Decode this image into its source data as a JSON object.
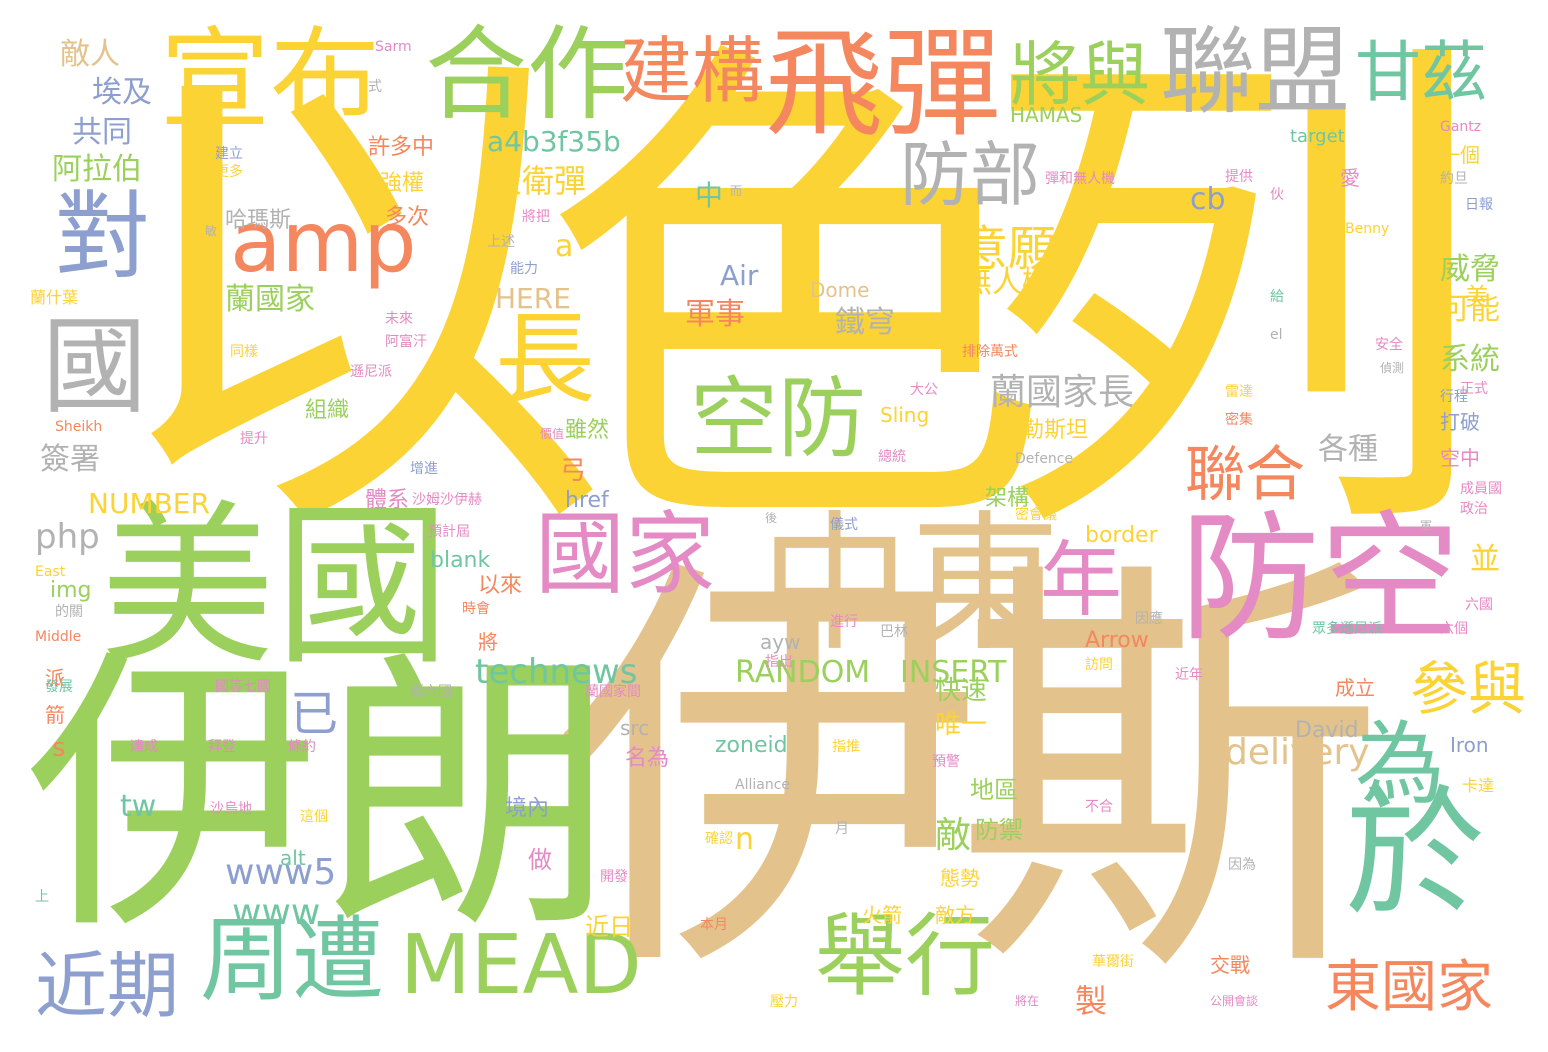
{
  "palette": {
    "yellow": "#fcd334",
    "green": "#9bd05c",
    "tan": "#e3c38b",
    "orange": "#f5875f",
    "teal": "#6fc6a1",
    "pink": "#e48ac4",
    "blue": "#8c9fcf",
    "gray": "#b2b2b2"
  },
  "words": [
    {
      "text": "以色列",
      "color": "yellow"
    },
    {
      "text": "伊斯",
      "color": "tan"
    },
    {
      "text": "伊朗",
      "color": "green"
    },
    {
      "text": "美國",
      "color": "green"
    },
    {
      "text": "中東",
      "color": "tan"
    },
    {
      "text": "防空",
      "color": "pink"
    },
    {
      "text": "飛彈",
      "color": "orange"
    },
    {
      "text": "宣布",
      "color": "yellow"
    },
    {
      "text": "合作",
      "color": "green"
    },
    {
      "text": "聯盟",
      "color": "gray"
    },
    {
      "text": "國家",
      "color": "pink"
    },
    {
      "text": "於",
      "color": "teal"
    },
    {
      "text": "周遭",
      "color": "teal"
    },
    {
      "text": "MEAD",
      "color": "green"
    },
    {
      "text": "舉行",
      "color": "green"
    },
    {
      "text": "國",
      "color": "gray"
    },
    {
      "text": "長",
      "color": "yellow"
    },
    {
      "text": "amp",
      "color": "orange"
    },
    {
      "text": "空防",
      "color": "green"
    },
    {
      "text": "對",
      "color": "blue"
    },
    {
      "text": "建構",
      "color": "orange"
    },
    {
      "text": "將與",
      "color": "green"
    },
    {
      "text": "甘茲",
      "color": "teal"
    },
    {
      "text": "為",
      "color": "teal"
    },
    {
      "text": "年",
      "color": "pink"
    },
    {
      "text": "近期",
      "color": "blue"
    },
    {
      "text": "防部",
      "color": "gray"
    },
    {
      "text": "聯合",
      "color": "orange"
    },
    {
      "text": "參與",
      "color": "yellow"
    },
    {
      "text": "東國家",
      "color": "orange"
    },
    {
      "text": "意願",
      "color": "yellow"
    },
    {
      "text": "蘭國家長",
      "color": "gray"
    },
    {
      "text": "technews",
      "color": "teal"
    },
    {
      "text": "delivery",
      "color": "tan"
    },
    {
      "text": "www5",
      "color": "blue"
    },
    {
      "text": "a4b3f35b",
      "color": "teal"
    },
    {
      "text": "大衛彈",
      "color": "yellow"
    },
    {
      "text": "RANDOM",
      "color": "green"
    },
    {
      "text": "INSERT",
      "color": "green"
    },
    {
      "text": "NUMBER",
      "color": "yellow"
    },
    {
      "text": "HERE",
      "color": "tan"
    },
    {
      "text": "www",
      "color": "teal"
    },
    {
      "text": "敵人",
      "color": "tan"
    },
    {
      "text": "埃及",
      "color": "blue"
    },
    {
      "text": "共同",
      "color": "blue"
    },
    {
      "text": "阿拉伯",
      "color": "green"
    },
    {
      "text": "蘭國家",
      "color": "green"
    },
    {
      "text": "無人機",
      "color": "yellow"
    },
    {
      "text": "軍事",
      "color": "orange"
    },
    {
      "text": "鐵穹",
      "color": "gray"
    },
    {
      "text": "威脅",
      "color": "green"
    },
    {
      "text": "可能",
      "color": "yellow"
    },
    {
      "text": "系統",
      "color": "green"
    },
    {
      "text": "各種",
      "color": "gray"
    },
    {
      "text": "巴勒斯坦",
      "color": "yellow"
    },
    {
      "text": "簽署",
      "color": "gray"
    },
    {
      "text": "php",
      "color": "gray"
    },
    {
      "text": "cb",
      "color": "blue"
    },
    {
      "text": "a",
      "color": "yellow"
    },
    {
      "text": "Air",
      "color": "blue"
    },
    {
      "text": "已",
      "color": "blue"
    },
    {
      "text": "快速",
      "color": "green"
    },
    {
      "text": "唯一",
      "color": "yellow"
    },
    {
      "text": "地區",
      "color": "green"
    },
    {
      "text": "防禦",
      "color": "green"
    },
    {
      "text": "敵",
      "color": "green"
    },
    {
      "text": "tw",
      "color": "teal"
    },
    {
      "text": "n",
      "color": "yellow"
    },
    {
      "text": "製",
      "color": "orange"
    },
    {
      "text": "並",
      "color": "yellow"
    },
    {
      "text": "美",
      "color": "yellow"
    },
    {
      "text": "中",
      "color": "teal"
    },
    {
      "text": "弓",
      "color": "orange"
    },
    {
      "text": "雖然",
      "color": "green"
    },
    {
      "text": "許多中",
      "color": "orange"
    },
    {
      "text": "強權",
      "color": "yellow"
    },
    {
      "text": "多次",
      "color": "orange"
    },
    {
      "text": "哈瑪斯",
      "color": "gray"
    },
    {
      "text": "組織",
      "color": "green"
    },
    {
      "text": "體系",
      "color": "pink"
    },
    {
      "text": "架構",
      "color": "green"
    },
    {
      "text": "以來",
      "color": "orange"
    },
    {
      "text": "blank",
      "color": "teal"
    },
    {
      "text": "img",
      "color": "green"
    },
    {
      "text": "href",
      "color": "blue"
    },
    {
      "text": "border",
      "color": "yellow"
    },
    {
      "text": "Arrow",
      "color": "orange"
    },
    {
      "text": "zoneid",
      "color": "teal"
    },
    {
      "text": "David",
      "color": "gray"
    },
    {
      "text": "Iron",
      "color": "blue"
    },
    {
      "text": "Sling",
      "color": "yellow"
    },
    {
      "text": "Dome",
      "color": "tan"
    },
    {
      "text": "target",
      "color": "teal"
    },
    {
      "text": "HAMAS",
      "color": "green"
    },
    {
      "text": "alt",
      "color": "teal"
    },
    {
      "text": "src",
      "color": "gray"
    },
    {
      "text": "ayw",
      "color": "gray"
    },
    {
      "text": "s",
      "color": "orange"
    },
    {
      "text": "ck",
      "color": "yellow"
    },
    {
      "text": "名為",
      "color": "pink"
    },
    {
      "text": "境內",
      "color": "blue"
    },
    {
      "text": "做",
      "color": "pink"
    },
    {
      "text": "近日",
      "color": "yellow"
    },
    {
      "text": "態勢",
      "color": "yellow"
    },
    {
      "text": "敵方",
      "color": "yellow"
    },
    {
      "text": "火箭",
      "color": "yellow"
    },
    {
      "text": "交戰",
      "color": "orange"
    },
    {
      "text": "成立",
      "color": "orange"
    },
    {
      "text": "派",
      "color": "orange"
    },
    {
      "text": "箭",
      "color": "orange"
    },
    {
      "text": "將",
      "color": "orange"
    },
    {
      "text": "一個",
      "color": "yellow"
    },
    {
      "text": "打破",
      "color": "blue"
    },
    {
      "text": "空中",
      "color": "pink"
    },
    {
      "text": "愛",
      "color": "pink"
    },
    {
      "text": "戰機",
      "color": "pink"
    },
    {
      "text": "蘭什葉",
      "color": "pink"
    },
    {
      "text": "彈和無人機",
      "color": "yellow"
    },
    {
      "text": "提供",
      "color": "pink"
    },
    {
      "text": "建立",
      "color": "pink"
    },
    {
      "text": "更多",
      "color": "blue"
    },
    {
      "text": "上述",
      "color": "yellow"
    },
    {
      "text": "能力",
      "color": "gray"
    },
    {
      "text": "將把",
      "color": "blue"
    },
    {
      "text": "Gantz",
      "color": "pink"
    },
    {
      "text": "Middle",
      "color": "pink"
    },
    {
      "text": "East",
      "color": "orange"
    },
    {
      "text": "Sheikh",
      "color": "yellow"
    },
    {
      "text": "Defence",
      "color": "orange"
    },
    {
      "text": "Alliance",
      "color": "gray"
    },
    {
      "text": "Benny",
      "color": "gray"
    },
    {
      "text": "Sarm",
      "color": "yellow"
    },
    {
      "text": "式",
      "color": "pink"
    },
    {
      "text": "約旦",
      "color": "gray"
    },
    {
      "text": "日報",
      "color": "gray"
    },
    {
      "text": "安全",
      "color": "blue"
    },
    {
      "text": "偵測",
      "color": "pink"
    },
    {
      "text": "正式",
      "color": "gray"
    },
    {
      "text": "行程",
      "color": "pink"
    },
    {
      "text": "el",
      "color": "blue"
    },
    {
      "text": "雷達",
      "color": "gray"
    },
    {
      "text": "密集",
      "color": "yellow"
    },
    {
      "text": "成員國",
      "color": "orange"
    },
    {
      "text": "政治",
      "color": "pink"
    },
    {
      "text": "時會",
      "color": "pink"
    },
    {
      "text": "六國",
      "color": "orange"
    },
    {
      "text": "六個",
      "color": "pink"
    },
    {
      "text": "眾多遜尼派",
      "color": "pink"
    },
    {
      "text": "因應",
      "color": "teal"
    },
    {
      "text": "近年",
      "color": "gray"
    },
    {
      "text": "訪問",
      "color": "pink"
    },
    {
      "text": "指出",
      "color": "yellow"
    },
    {
      "text": "進行",
      "color": "pink"
    },
    {
      "text": "巴林",
      "color": "pink"
    },
    {
      "text": "後",
      "color": "gray"
    },
    {
      "text": "儀式",
      "color": "gray"
    },
    {
      "text": "密會議",
      "color": "blue"
    },
    {
      "text": "預計屆",
      "color": "yellow"
    },
    {
      "text": "沙姆沙伊赫",
      "color": "pink"
    },
    {
      "text": "增進",
      "color": "pink"
    },
    {
      "text": "總統",
      "color": "blue"
    },
    {
      "text": "大公",
      "color": "pink"
    },
    {
      "text": "排除萬式",
      "color": "pink"
    },
    {
      "text": "遜尼派",
      "color": "orange"
    },
    {
      "text": "阿富汗",
      "color": "pink"
    },
    {
      "text": "未來",
      "color": "pink"
    },
    {
      "text": "同樣",
      "color": "pink"
    },
    {
      "text": "提升",
      "color": "yellow"
    },
    {
      "text": "蘭國家間",
      "color": "pink"
    },
    {
      "text": "國等七國",
      "color": "pink"
    },
    {
      "text": "兩六國",
      "color": "pink"
    },
    {
      "text": "發展",
      "color": "gray"
    },
    {
      "text": "達成",
      "color": "teal"
    },
    {
      "text": "拜登",
      "color": "pink"
    },
    {
      "text": "條約",
      "color": "pink"
    },
    {
      "text": "沙烏地",
      "color": "pink"
    },
    {
      "text": "這個",
      "color": "pink"
    },
    {
      "text": "指推",
      "color": "yellow"
    },
    {
      "text": "預警",
      "color": "yellow"
    },
    {
      "text": "卡達",
      "color": "pink"
    },
    {
      "text": "不合",
      "color": "yellow"
    },
    {
      "text": "因為",
      "color": "pink"
    },
    {
      "text": "開發",
      "color": "gray"
    },
    {
      "text": "確認",
      "color": "pink"
    },
    {
      "text": "月",
      "color": "yellow"
    },
    {
      "text": "本月",
      "color": "gray"
    },
    {
      "text": "壓力",
      "color": "orange"
    },
    {
      "text": "將在",
      "color": "yellow"
    },
    {
      "text": "公開會談",
      "color": "pink"
    },
    {
      "text": "華爾街",
      "color": "pink"
    },
    {
      "text": "上",
      "color": "yellow"
    },
    {
      "text": "的關",
      "color": "teal"
    },
    {
      "text": "伙",
      "color": "gray"
    },
    {
      "text": "軍",
      "color": "pink"
    },
    {
      "text": "給",
      "color": "gray"
    },
    {
      "text": "敏",
      "color": "teal"
    },
    {
      "text": "而",
      "color": "gray"
    },
    {
      "text": "價值",
      "color": "gray"
    },
    {
      "text": "係",
      "color": "pink"
    }
  ]
}
